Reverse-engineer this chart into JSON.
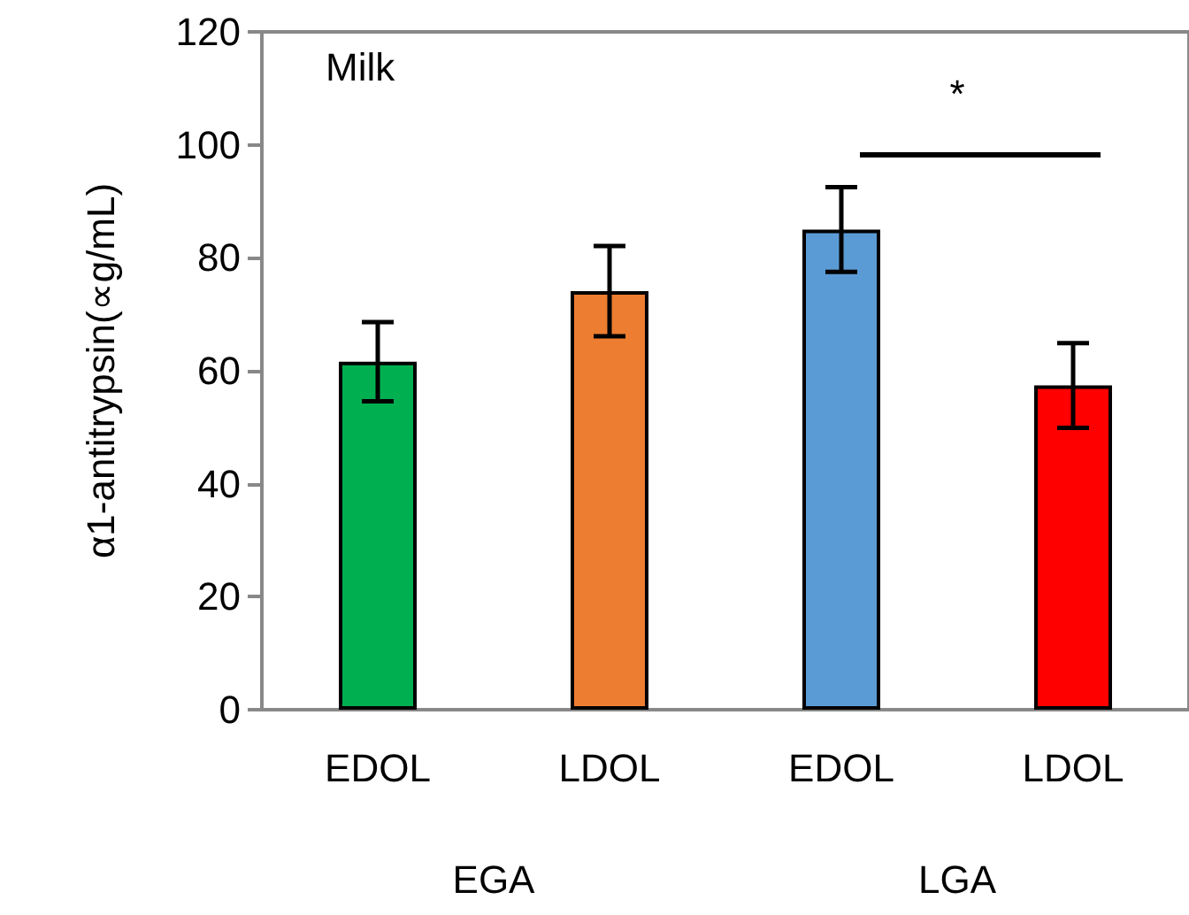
{
  "chart_data": {
    "type": "bar",
    "ylabel": "α1-antitrypsin(∝g/mL)",
    "categories": [
      "EDOL",
      "LDOL",
      "EDOL",
      "LDOL"
    ],
    "values": [
      61.6,
      74.1,
      85.0,
      57.4
    ],
    "errors": [
      7,
      8,
      7.5,
      7.5
    ],
    "colors": [
      "#00b050",
      "#ed7d31",
      "#5b9bd5",
      "#ff0000"
    ],
    "ylim": [
      0,
      120
    ],
    "yticks": [
      0,
      20,
      40,
      60,
      80,
      100,
      120
    ],
    "grid": false,
    "annotations": [
      "Milk",
      "*",
      "EGA",
      "LGA"
    ]
  }
}
